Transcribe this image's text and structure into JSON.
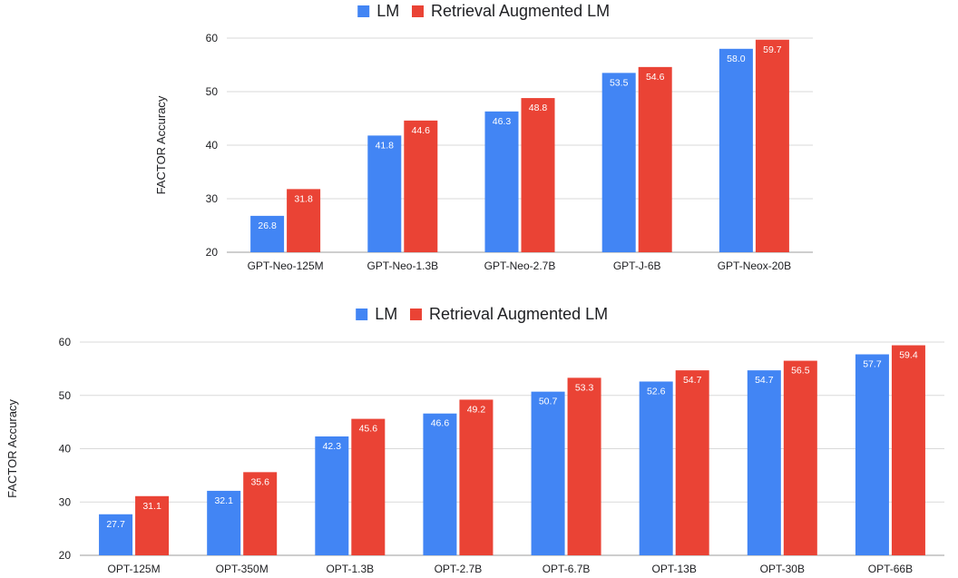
{
  "colors": {
    "lm": "#4285F4",
    "ralm": "#EA4335",
    "grid": "#d9d9d9",
    "text": "#202124"
  },
  "chart_data": [
    {
      "type": "bar",
      "title": "",
      "xlabel": "",
      "ylabel": "FACTOR Accuracy",
      "ylim": [
        20,
        60
      ],
      "yticks": [
        20,
        30,
        40,
        50,
        60
      ],
      "legend": "top-center",
      "grid": true,
      "categories": [
        "GPT-Neo-125M",
        "GPT-Neo-1.3B",
        "GPT-Neo-2.7B",
        "GPT-J-6B",
        "GPT-Neox-20B"
      ],
      "series": [
        {
          "name": "LM",
          "values": [
            26.8,
            41.8,
            46.3,
            53.5,
            58.0
          ]
        },
        {
          "name": "Retrieval Augmented LM",
          "values": [
            31.8,
            44.6,
            48.8,
            54.6,
            59.7
          ]
        }
      ]
    },
    {
      "type": "bar",
      "title": "",
      "xlabel": "",
      "ylabel": "FACTOR Accuracy",
      "ylim": [
        20,
        60
      ],
      "yticks": [
        20,
        30,
        40,
        50,
        60
      ],
      "legend": "top-center",
      "grid": true,
      "categories": [
        "OPT-125M",
        "OPT-350M",
        "OPT-1.3B",
        "OPT-2.7B",
        "OPT-6.7B",
        "OPT-13B",
        "OPT-30B",
        "OPT-66B"
      ],
      "series": [
        {
          "name": "LM",
          "values": [
            27.7,
            32.1,
            42.3,
            46.6,
            50.7,
            52.6,
            54.7,
            57.7
          ]
        },
        {
          "name": "Retrieval Augmented LM",
          "values": [
            31.1,
            35.6,
            45.6,
            49.2,
            53.3,
            54.7,
            56.5,
            59.4
          ]
        }
      ]
    }
  ]
}
